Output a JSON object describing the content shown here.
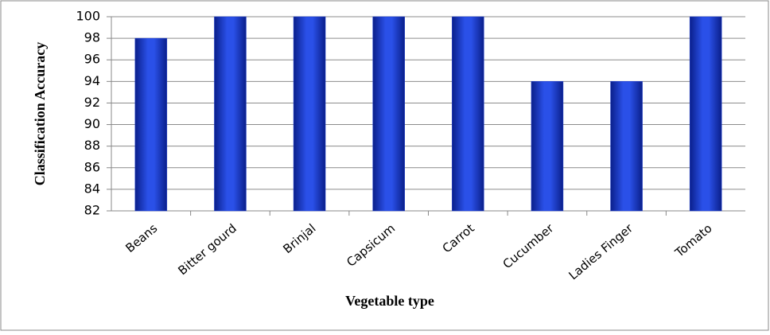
{
  "chart_data": {
    "type": "bar",
    "categories": [
      "Beans",
      "Bitter gourd",
      "Brinjal",
      "Capsicum",
      "Carrot",
      "Cucumber",
      "Ladies Finger",
      "Tomato"
    ],
    "values": [
      98,
      100,
      100,
      100,
      100,
      94,
      94,
      100
    ],
    "color": "#1f3fd0",
    "ylim": [
      82,
      100
    ],
    "yticks": [
      82,
      84,
      86,
      88,
      90,
      92,
      94,
      96,
      98,
      100
    ],
    "grid": true,
    "y_label": "Classification Accuracy",
    "x_label": "Vegetable type"
  }
}
